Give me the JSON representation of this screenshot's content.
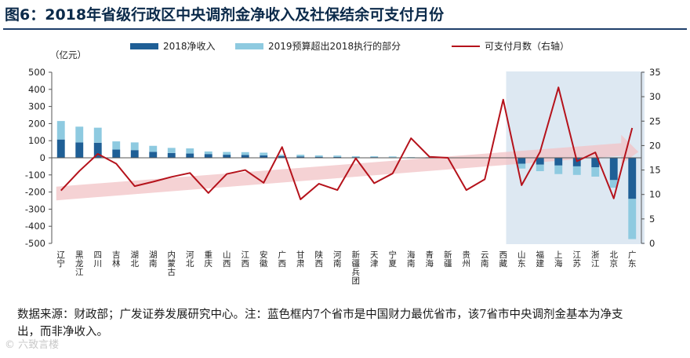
{
  "title": "图6：2018年省级行政区中央调剂金净收入及社保结余可支付月份",
  "note": "数据来源：财政部；广发证券发展研究中心。注：蓝色框内7个省市是中国财力最优省市，该7省市中央调剂金基本为净支出，而非净收入。",
  "watermark": "© 六致言楼",
  "colors": {
    "dark_bar": "#1f5f96",
    "light_bar": "#8ecae0",
    "line": "#b5121b",
    "highlight_bg": "#dde8f2",
    "arrow": "#f2c3c5"
  },
  "chart_data": {
    "type": "bar",
    "categories": [
      "辽宁",
      "黑龙江",
      "四川",
      "吉林",
      "湖北",
      "湖南",
      "内蒙古",
      "河北",
      "重庆",
      "山西",
      "江西",
      "安徽",
      "广西",
      "甘肃",
      "陕西",
      "河南",
      "新疆兵团",
      "天津",
      "宁夏",
      "海南",
      "青海",
      "新疆",
      "贵州",
      "云南",
      "西藏",
      "山东",
      "福建",
      "上海",
      "江苏",
      "浙江",
      "北京",
      "广东"
    ],
    "y_unit": "（亿元）",
    "ylim": [
      -500,
      500
    ],
    "yticks": [
      -500,
      -400,
      -300,
      -200,
      -100,
      0,
      100,
      200,
      300,
      400,
      500
    ],
    "y2lim": [
      0,
      35
    ],
    "y2ticks": [
      0,
      5,
      10,
      15,
      20,
      25,
      30,
      35
    ],
    "series": [
      {
        "name": "2018净收入",
        "kind": "bar-dark",
        "values": [
          107,
          90,
          88,
          48,
          45,
          35,
          28,
          25,
          22,
          18,
          17,
          14,
          10,
          8,
          6,
          5,
          4,
          4,
          3,
          2,
          2,
          1,
          0,
          0,
          0,
          -35,
          -40,
          -45,
          -50,
          -55,
          -130,
          -240
        ]
      },
      {
        "name": "2019预算超出2018执行的部分",
        "kind": "bar-light",
        "values": [
          108,
          92,
          88,
          48,
          45,
          35,
          30,
          30,
          15,
          16,
          16,
          16,
          8,
          10,
          8,
          8,
          5,
          5,
          5,
          2,
          2,
          1,
          0,
          0,
          0,
          -28,
          -38,
          -50,
          -50,
          -55,
          -45,
          -235
        ]
      },
      {
        "name": "可支付月数（右轴）",
        "kind": "line-right",
        "values": [
          10.8,
          14.8,
          18.3,
          16.3,
          11.7,
          12.6,
          13.6,
          14.4,
          10.3,
          14.2,
          15.0,
          12.4,
          19.7,
          9.0,
          12.2,
          10.9,
          17.4,
          12.3,
          14.3,
          21.5,
          17.7,
          17.5,
          10.9,
          13.1,
          29.4,
          11.9,
          18.7,
          31.9,
          16.8,
          18.6,
          9.2,
          23.6
        ]
      }
    ],
    "highlight_range": [
      "山东",
      "广东"
    ],
    "legend_position": "top",
    "grid": false
  }
}
